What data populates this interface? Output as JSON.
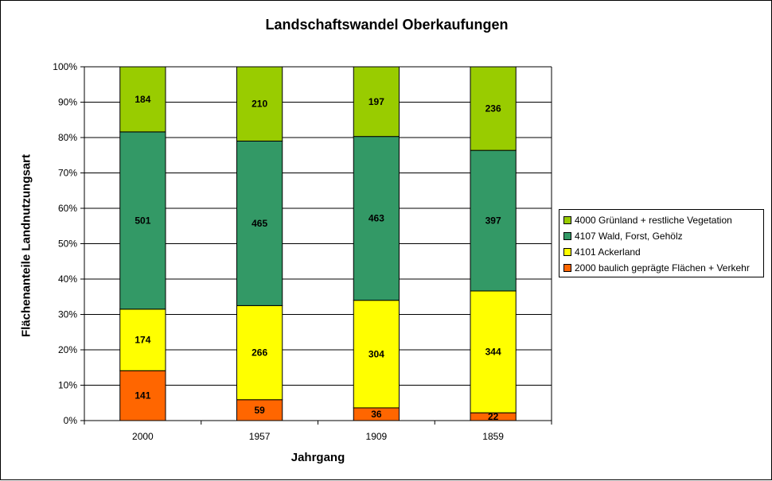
{
  "chart_data": {
    "type": "bar",
    "stacked": "percent",
    "title": "Landschaftswandel Oberkaufungen",
    "xlabel": "Jahrgang",
    "ylabel": "Flächenanteile Landnutzungsart",
    "ylim": [
      0,
      100
    ],
    "yticks": [
      "0%",
      "10%",
      "20%",
      "30%",
      "40%",
      "50%",
      "60%",
      "70%",
      "80%",
      "90%",
      "100%"
    ],
    "categories": [
      "2000",
      "1957",
      "1909",
      "1859"
    ],
    "grid": true,
    "legend_position": "right",
    "series": [
      {
        "name": "2000 baulich geprägte Flächen + Verkehr",
        "color": "#FF6600",
        "values": [
          141,
          59,
          36,
          22
        ]
      },
      {
        "name": "4101 Ackerland",
        "color": "#FFFF00",
        "values": [
          174,
          266,
          304,
          344
        ]
      },
      {
        "name": "4107 Wald, Forst, Gehölz",
        "color": "#339966",
        "values": [
          501,
          465,
          463,
          397
        ]
      },
      {
        "name": "4000 Grünland + restliche Vegetation",
        "color": "#99CC00",
        "values": [
          184,
          210,
          197,
          236
        ]
      }
    ]
  }
}
